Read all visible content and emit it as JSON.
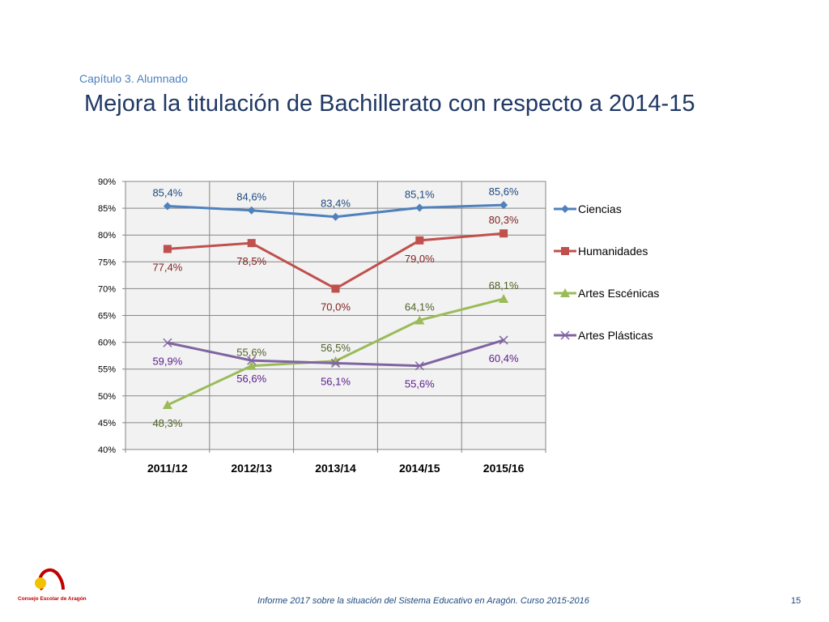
{
  "header": {
    "subtitle": "Capítulo 3. Alumnado",
    "title": "Mejora la titulación de Bachillerato con respecto a 2014-15"
  },
  "footer": {
    "text": "Informe 2017 sobre la situación del Sistema Educativo en Aragón. Curso 2015-2016",
    "page": "15"
  },
  "logo": {
    "text": "Consejo Escolar de Aragón"
  },
  "chart_data": {
    "type": "line",
    "categories": [
      "2011/12",
      "2012/13",
      "2013/14",
      "2014/15",
      "2015/16"
    ],
    "yticks": [
      "40%",
      "45%",
      "50%",
      "55%",
      "60%",
      "65%",
      "70%",
      "75%",
      "80%",
      "85%",
      "90%"
    ],
    "ylim": [
      40,
      90
    ],
    "grid": true,
    "legend_position": "right",
    "series": [
      {
        "name": "Ciencias",
        "color": "#4f81bd",
        "labelColor": "#1f497d",
        "marker": "diamond",
        "values": [
          85.4,
          84.6,
          83.4,
          85.1,
          85.6
        ],
        "labels": [
          "85,4%",
          "84,6%",
          "83,4%",
          "85,1%",
          "85,6%"
        ],
        "labelPos": [
          "above",
          "above",
          "above",
          "above",
          "above"
        ]
      },
      {
        "name": "Humanidades",
        "color": "#c0504d",
        "labelColor": "#7f1f1f",
        "marker": "square",
        "values": [
          77.4,
          78.5,
          70.0,
          79.0,
          80.3
        ],
        "labels": [
          "77,4%",
          "78,5%",
          "70,0%",
          "79,0%",
          "80,3%"
        ],
        "labelPos": [
          "below",
          "below",
          "below",
          "below",
          "above"
        ]
      },
      {
        "name": "Artes Escénicas",
        "color": "#9bbb59",
        "labelColor": "#4f6228",
        "marker": "triangle",
        "values": [
          48.3,
          55.6,
          56.5,
          64.1,
          68.1
        ],
        "labels": [
          "48,3%",
          "55,6%",
          "56,5%",
          "64,1%",
          "68,1%"
        ],
        "labelPos": [
          "below",
          "above",
          "above",
          "above",
          "above"
        ]
      },
      {
        "name": "Artes Plásticas",
        "color": "#8064a2",
        "labelColor": "#5a1c8c",
        "marker": "x",
        "values": [
          59.9,
          56.6,
          56.1,
          55.6,
          60.4
        ],
        "labels": [
          "59,9%",
          "56,6%",
          "56,1%",
          "55,6%",
          "60,4%"
        ],
        "labelPos": [
          "below",
          "below",
          "below",
          "below",
          "below"
        ]
      }
    ]
  }
}
